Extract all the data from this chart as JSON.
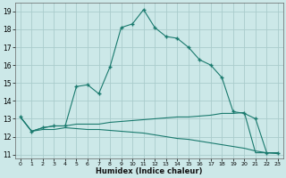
{
  "xlabel": "Humidex (Indice chaleur)",
  "bg_color": "#cce8e8",
  "grid_color": "#aacccc",
  "line_color": "#1a7a6e",
  "xlim": [
    -0.5,
    23.5
  ],
  "ylim": [
    10.8,
    19.5
  ],
  "yticks": [
    11,
    12,
    13,
    14,
    15,
    16,
    17,
    18,
    19
  ],
  "xticks": [
    0,
    1,
    2,
    3,
    4,
    5,
    6,
    7,
    8,
    9,
    10,
    11,
    12,
    13,
    14,
    15,
    16,
    17,
    18,
    19,
    20,
    21,
    22,
    23
  ],
  "series1_x": [
    0,
    1,
    2,
    3,
    4,
    5,
    6,
    7,
    8,
    9,
    10,
    11,
    12,
    13,
    14,
    15,
    16,
    17,
    18,
    19,
    20,
    21,
    22,
    23
  ],
  "series1_y": [
    13.1,
    12.3,
    12.5,
    12.6,
    12.6,
    14.8,
    14.9,
    14.4,
    15.9,
    18.1,
    18.3,
    19.1,
    18.1,
    17.6,
    17.5,
    17.0,
    16.3,
    16.0,
    15.3,
    13.4,
    13.3,
    13.0,
    11.1,
    11.1
  ],
  "series2_x": [
    0,
    1,
    2,
    3,
    4,
    5,
    6,
    7,
    8,
    9,
    10,
    11,
    12,
    13,
    14,
    15,
    16,
    17,
    18,
    19,
    20,
    21,
    22,
    23
  ],
  "series2_y": [
    13.1,
    12.3,
    12.5,
    12.6,
    12.6,
    12.7,
    12.7,
    12.7,
    12.8,
    12.85,
    12.9,
    12.95,
    13.0,
    13.05,
    13.1,
    13.1,
    13.15,
    13.2,
    13.3,
    13.3,
    13.35,
    11.1,
    11.1,
    11.1
  ],
  "series3_x": [
    0,
    1,
    2,
    3,
    4,
    5,
    6,
    7,
    8,
    9,
    10,
    11,
    12,
    13,
    14,
    15,
    16,
    17,
    18,
    19,
    20,
    21,
    22,
    23
  ],
  "series3_y": [
    13.1,
    12.3,
    12.4,
    12.4,
    12.5,
    12.45,
    12.4,
    12.4,
    12.35,
    12.3,
    12.25,
    12.2,
    12.1,
    12.0,
    11.9,
    11.85,
    11.75,
    11.65,
    11.55,
    11.45,
    11.35,
    11.2,
    11.1,
    11.05
  ]
}
